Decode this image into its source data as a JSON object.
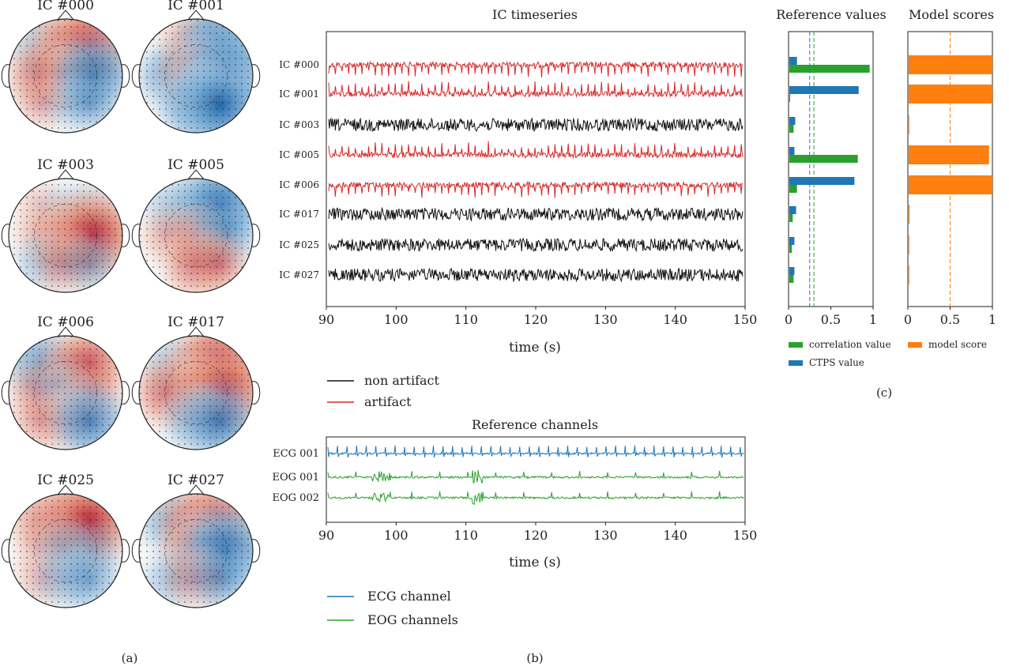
{
  "panel_labels": {
    "a": "(a)",
    "b": "(b)",
    "c": "(c)"
  },
  "ic_topomaps": [
    {
      "label": "IC #000",
      "map": [
        [
          -0.35,
          0.6,
          0.95
        ],
        [
          0.45,
          0.35,
          -0.75
        ],
        [
          0.2,
          -0.1,
          -0.35
        ]
      ]
    },
    {
      "label": "IC #001",
      "map": [
        [
          0,
          0.6,
          -0.95
        ],
        [
          -0.45,
          0.5,
          -1.0
        ],
        [
          0,
          -0.7,
          -0.9
        ]
      ]
    },
    {
      "label": "IC #003",
      "map": [
        [
          0.15,
          -0.1,
          -0.15
        ],
        [
          0.15,
          0.55,
          0.95
        ],
        [
          -0.25,
          0.35,
          -0.3
        ]
      ]
    },
    {
      "label": "IC #005",
      "map": [
        [
          -0.25,
          -0.4,
          -0.95
        ],
        [
          0.25,
          0.3,
          -0.45
        ],
        [
          0,
          0.5,
          0.35
        ]
      ]
    },
    {
      "label": "IC #006",
      "map": [
        [
          -0.55,
          0.25,
          0.65
        ],
        [
          0.35,
          -0.25,
          0.35
        ],
        [
          0.3,
          0.25,
          -0.65
        ]
      ]
    },
    {
      "label": "IC #017",
      "map": [
        [
          -0.3,
          0.3,
          0.95
        ],
        [
          0.55,
          0.5,
          0.9
        ],
        [
          0,
          -0.45,
          -0.65
        ]
      ]
    },
    {
      "label": "IC #025",
      "map": [
        [
          0.4,
          0.68,
          0.95
        ],
        [
          0.1,
          -0.3,
          -0.25
        ],
        [
          0.2,
          -0.3,
          -0.4
        ]
      ]
    },
    {
      "label": "IC #027",
      "map": [
        [
          -0.45,
          0.6,
          0.75
        ],
        [
          0,
          0.5,
          -0.95
        ],
        [
          -0.3,
          0.3,
          -0.4
        ]
      ]
    }
  ],
  "chart_data": [
    {
      "type": "line",
      "title": "IC timeseries",
      "xlabel": "time (s)",
      "xlim": [
        90,
        150
      ],
      "xticks": [
        90,
        100,
        110,
        120,
        130,
        140,
        150
      ],
      "legend": [
        {
          "name": "non artifact",
          "color": "#111111"
        },
        {
          "name": "artifact",
          "color": "#d62728"
        }
      ],
      "series": [
        {
          "name": "IC #000",
          "class": "artifact"
        },
        {
          "name": "IC #001",
          "class": "artifact"
        },
        {
          "name": "IC #003",
          "class": "non artifact"
        },
        {
          "name": "IC #005",
          "class": "artifact"
        },
        {
          "name": "IC #006",
          "class": "artifact"
        },
        {
          "name": "IC #017",
          "class": "non artifact"
        },
        {
          "name": "IC #025",
          "class": "non artifact"
        },
        {
          "name": "IC #027",
          "class": "non artifact"
        }
      ]
    },
    {
      "type": "line",
      "title": "Reference channels",
      "xlabel": "time (s)",
      "xlim": [
        90,
        150
      ],
      "xticks": [
        90,
        100,
        110,
        120,
        130,
        140,
        150
      ],
      "legend": [
        {
          "name": "ECG channel",
          "color": "#1f77b4"
        },
        {
          "name": "EOG channels",
          "color": "#2ca02c"
        }
      ],
      "series": [
        {
          "name": "ECG 001",
          "color": "#1f77b4"
        },
        {
          "name": "EOG 001",
          "color": "#2ca02c"
        },
        {
          "name": "EOG 002",
          "color": "#2ca02c"
        }
      ]
    },
    {
      "type": "bar",
      "orientation": "horizontal",
      "title": "Reference values",
      "categories": [
        "IC #000",
        "IC #001",
        "IC #003",
        "IC #005",
        "IC #006",
        "IC #017",
        "IC #025",
        "IC #027"
      ],
      "xlim": [
        0,
        1
      ],
      "xticks": [
        0.0,
        0.5,
        1.0
      ],
      "thresholds": [
        0.25,
        0.3
      ],
      "series": [
        {
          "name": "correlation value",
          "color": "#2ca02c",
          "values": [
            0.95,
            0.01,
            0.05,
            0.81,
            0.09,
            0.04,
            0.03,
            0.05
          ]
        },
        {
          "name": "CTPS value",
          "color": "#1f77b4",
          "values": [
            0.09,
            0.82,
            0.07,
            0.06,
            0.77,
            0.08,
            0.06,
            0.06
          ]
        }
      ]
    },
    {
      "type": "bar",
      "orientation": "horizontal",
      "title": "Model scores",
      "categories": [
        "IC #000",
        "IC #001",
        "IC #003",
        "IC #005",
        "IC #006",
        "IC #017",
        "IC #025",
        "IC #027"
      ],
      "xlim": [
        0,
        1
      ],
      "xticks": [
        0.0,
        0.5,
        1.0
      ],
      "threshold": 0.5,
      "series": [
        {
          "name": "model score",
          "color": "#ff7f0e",
          "values": [
            1.0,
            1.0,
            0.003,
            0.96,
            1.0,
            0.02,
            0.015,
            0.003
          ]
        }
      ]
    }
  ],
  "colors": {
    "artifact": "#d62728",
    "non_artifact": "#111111",
    "ecg": "#1f77b4",
    "eog": "#2ca02c",
    "correlation": "#2ca02c",
    "ctps": "#1f77b4",
    "model": "#ff7f0e"
  }
}
